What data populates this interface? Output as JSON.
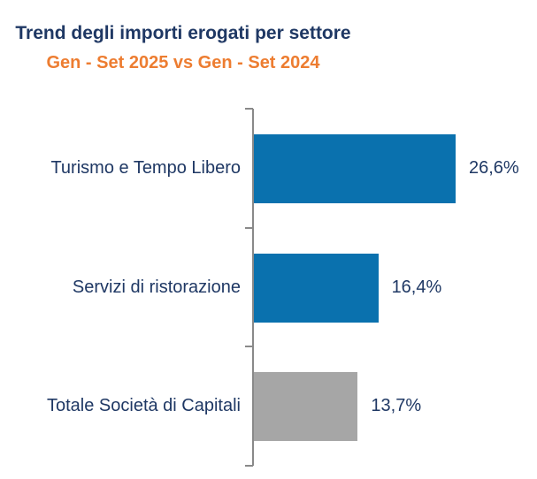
{
  "header": {
    "title": "Trend degli importi erogati per settore",
    "subtitle": "Gen - Set 2025 vs Gen - Set 2024"
  },
  "colors": {
    "title_text": "#1F3864",
    "subtitle_text": "#ED7D31",
    "bar_blue": "#0A71AE",
    "bar_gray": "#A6A6A6",
    "label_text": "#1F3864",
    "axis_line": "#898989",
    "background": "#FFFFFF"
  },
  "chart_data": {
    "type": "bar",
    "orientation": "horizontal",
    "title": "Trend degli importi erogati per settore",
    "subtitle": "Gen - Set 2025 vs Gen - Set 2024",
    "categories": [
      "Turismo e Tempo Libero",
      "Servizi di ristorazione",
      "Totale Società di Capitali"
    ],
    "values": [
      26.6,
      16.4,
      13.7
    ],
    "value_labels": [
      "26,6%",
      "16,4%",
      "13,7%"
    ],
    "bar_colors": [
      "#0A71AE",
      "#0A71AE",
      "#A6A6A6"
    ],
    "unit": "%",
    "xlim": [
      0,
      35
    ],
    "grid": false,
    "legend": false,
    "value_label_position": "outside-end",
    "category_axis": "left"
  }
}
